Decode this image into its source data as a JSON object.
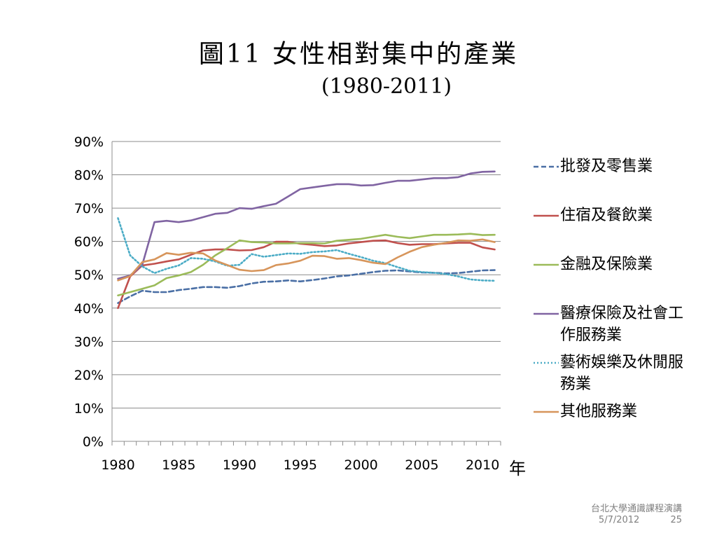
{
  "title": "圖11  女性相對集中的產業",
  "subtitle": "(1980-2011)",
  "x_unit_label": "年",
  "footer": {
    "line1": "台北大學通識課程演講",
    "date": "5/7/2012",
    "page": "25"
  },
  "chart_data": {
    "type": "line",
    "x": [
      1980,
      1981,
      1982,
      1983,
      1984,
      1985,
      1986,
      1987,
      1988,
      1989,
      1990,
      1991,
      1992,
      1993,
      1994,
      1995,
      1996,
      1997,
      1998,
      1999,
      2000,
      2001,
      2002,
      2003,
      2004,
      2005,
      2006,
      2007,
      2008,
      2009,
      2010,
      2011
    ],
    "xticks": [
      "1980",
      "1985",
      "1990",
      "1995",
      "2000",
      "2005",
      "2010"
    ],
    "yticks": [
      "0%",
      "10%",
      "20%",
      "30%",
      "40%",
      "50%",
      "60%",
      "70%",
      "80%",
      "90%"
    ],
    "ylim": [
      0,
      90
    ],
    "grid": true,
    "legend": "right",
    "series": [
      {
        "name": "批發及零售業",
        "color": "#4a6fa5",
        "dash": "dashed",
        "values": [
          41.5,
          43.5,
          45.2,
          44.8,
          44.8,
          45.4,
          45.8,
          46.3,
          46.3,
          46.1,
          46.6,
          47.4,
          47.9,
          48.0,
          48.3,
          48.0,
          48.4,
          48.9,
          49.5,
          49.8,
          50.3,
          50.8,
          51.2,
          51.3,
          51.0,
          50.7,
          50.6,
          50.4,
          50.5,
          50.9,
          51.3,
          51.4
        ]
      },
      {
        "name": "住宿及餐飲業",
        "color": "#c0504d",
        "dash": "solid",
        "values": [
          40.0,
          49.5,
          52.8,
          53.3,
          54.0,
          54.6,
          56.0,
          57.3,
          57.6,
          57.6,
          57.3,
          57.4,
          58.3,
          59.9,
          59.9,
          59.3,
          59.0,
          58.6,
          58.8,
          59.4,
          59.8,
          60.2,
          60.3,
          59.5,
          59.0,
          59.2,
          59.2,
          59.4,
          59.6,
          59.6,
          58.2,
          57.6
        ]
      },
      {
        "name": "金融及保險業",
        "color": "#9bbb59",
        "dash": "solid",
        "values": [
          43.8,
          44.8,
          45.8,
          46.8,
          49.0,
          49.8,
          50.8,
          53.0,
          55.8,
          58.0,
          60.3,
          59.8,
          59.7,
          59.4,
          59.4,
          59.5,
          59.5,
          59.4,
          60.2,
          60.5,
          60.8,
          61.4,
          62.0,
          61.4,
          61.0,
          61.5,
          62.0,
          62.0,
          62.1,
          62.3,
          61.9,
          62.0
        ]
      },
      {
        "name": "醫療保險及社會工作服務業",
        "color": "#8064a2",
        "dash": "solid",
        "values": [
          48.8,
          49.8,
          53.0,
          65.8,
          66.2,
          65.8,
          66.3,
          67.3,
          68.3,
          68.6,
          70.0,
          69.8,
          70.6,
          71.3,
          73.5,
          75.7,
          76.2,
          76.7,
          77.2,
          77.2,
          76.8,
          76.9,
          77.6,
          78.2,
          78.2,
          78.6,
          79.0,
          79.0,
          79.3,
          80.4,
          80.9,
          81.0
        ]
      },
      {
        "name": "藝術娛樂及休閒服務業",
        "color": "#4bacc6",
        "dash": "dotted",
        "values": [
          67.0,
          55.8,
          52.5,
          50.5,
          51.8,
          52.8,
          55.0,
          54.8,
          54.0,
          52.7,
          53.0,
          56.2,
          55.4,
          55.9,
          56.4,
          56.3,
          56.8,
          57.0,
          57.4,
          56.3,
          55.3,
          54.2,
          53.5,
          52.3,
          51.2,
          50.8,
          50.6,
          50.2,
          49.5,
          48.6,
          48.3,
          48.2
        ]
      },
      {
        "name": "其他服務業",
        "color": "#d7955b",
        "dash": "solid",
        "values": [
          48.3,
          49.6,
          53.8,
          54.6,
          56.5,
          56.0,
          56.6,
          56.4,
          54.3,
          52.9,
          51.5,
          51.1,
          51.4,
          52.9,
          53.4,
          54.2,
          55.7,
          55.6,
          54.8,
          55.0,
          54.4,
          53.6,
          53.2,
          55.2,
          56.9,
          58.3,
          59.0,
          59.6,
          60.3,
          60.2,
          60.6,
          59.8
        ]
      }
    ]
  }
}
